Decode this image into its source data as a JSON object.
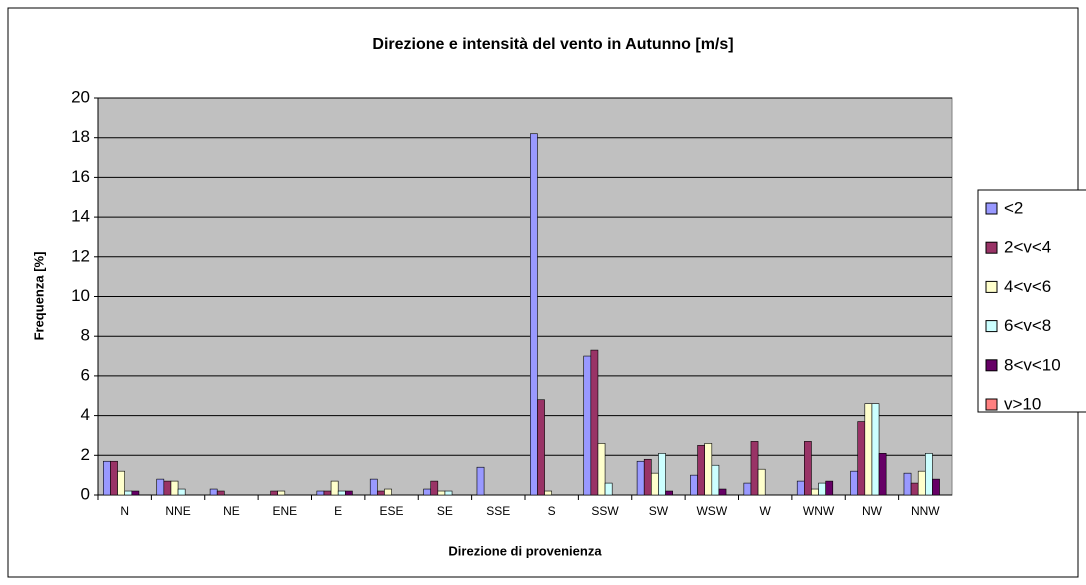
{
  "chart_data": {
    "type": "bar",
    "title": "Direzione e intensità del vento in Autunno [m/s]",
    "x_label": "Direzione di provenienza",
    "y_label": "Frequenza [%]",
    "categories": [
      "N",
      "NNE",
      "NE",
      "ENE",
      "E",
      "ESE",
      "SE",
      "SSE",
      "S",
      "SSW",
      "SW",
      "WSW",
      "W",
      "WNW",
      "NW",
      "NNW"
    ],
    "series": [
      {
        "name": "<2",
        "color": "#9999ff",
        "values": [
          1.7,
          0.8,
          0.3,
          0,
          0.2,
          0.8,
          0.3,
          1.4,
          18.2,
          7.0,
          1.7,
          1.0,
          0.6,
          0.7,
          1.2,
          1.1
        ]
      },
      {
        "name": "2<v<4",
        "color": "#993366",
        "values": [
          1.7,
          0.7,
          0.2,
          0.2,
          0.2,
          0.2,
          0.7,
          0,
          4.8,
          7.3,
          1.8,
          2.5,
          2.7,
          2.7,
          3.7,
          0.6
        ]
      },
      {
        "name": "4<v<6",
        "color": "#ffffcc",
        "values": [
          1.2,
          0.7,
          0,
          0.2,
          0.7,
          0.3,
          0.2,
          0,
          0.2,
          2.6,
          1.1,
          2.6,
          1.3,
          0.3,
          4.6,
          1.2
        ]
      },
      {
        "name": "6<v<8",
        "color": "#ccffff",
        "values": [
          0.2,
          0.3,
          0,
          0,
          0.2,
          0,
          0.2,
          0,
          0,
          0.6,
          2.1,
          1.5,
          0,
          0.6,
          4.6,
          2.1
        ]
      },
      {
        "name": "8<v<10",
        "color": "#660066",
        "values": [
          0.2,
          0,
          0,
          0,
          0.2,
          0,
          0,
          0,
          0,
          0,
          0.2,
          0.3,
          0,
          0.7,
          2.1,
          0.8
        ]
      },
      {
        "name": "v>10",
        "color": "#ff8080",
        "values": [
          0,
          0,
          0,
          0,
          0,
          0,
          0,
          0,
          0,
          0,
          0,
          0,
          0,
          0,
          0,
          0
        ]
      }
    ],
    "ylim": [
      0,
      20
    ],
    "yticks": [
      0,
      2,
      4,
      6,
      8,
      10,
      12,
      14,
      16,
      18,
      20
    ],
    "grid": true
  }
}
